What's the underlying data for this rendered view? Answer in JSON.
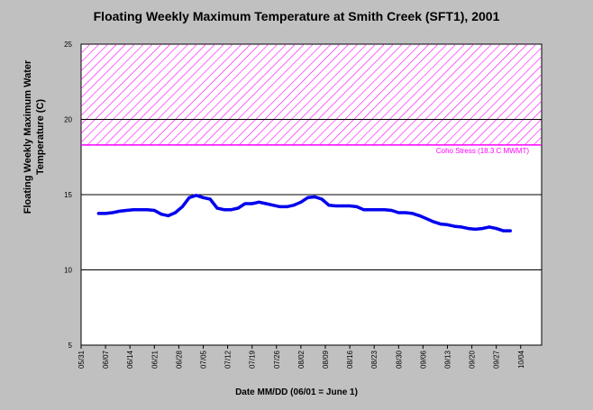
{
  "chart_data": {
    "type": "line",
    "title": "Floating Weekly Maximum Temperature at Smith Creek (SFT1), 2001",
    "ylabel_lines": [
      "Floating Weekly Maximum Water",
      "Temperature (C)"
    ],
    "xlabel": "Date MM/DD (06/01 = June 1)",
    "ylim": [
      5,
      25
    ],
    "yticks": [
      5,
      10,
      15,
      20,
      25
    ],
    "xlim": [
      "05/31",
      "10/10"
    ],
    "xticks": [
      "05/31",
      "06/07",
      "06/14",
      "06/21",
      "06/28",
      "07/05",
      "07/12",
      "07/19",
      "07/26",
      "08/02",
      "08/09",
      "08/16",
      "08/23",
      "08/30",
      "09/06",
      "09/13",
      "09/20",
      "09/27",
      "10/04"
    ],
    "grid": "horizontal",
    "threshold": {
      "label": "Coho Stress (18.3 C MWMT)",
      "value": 18.3,
      "band_top": 25,
      "color": "#ff00ff"
    },
    "series": [
      {
        "color": "#0000ee",
        "x": [
          "06/05",
          "06/07",
          "06/09",
          "06/11",
          "06/13",
          "06/15",
          "06/17",
          "06/19",
          "06/21",
          "06/23",
          "06/25",
          "06/27",
          "06/29",
          "07/01",
          "07/03",
          "07/05",
          "07/07",
          "07/09",
          "07/11",
          "07/13",
          "07/15",
          "07/17",
          "07/19",
          "07/21",
          "07/23",
          "07/25",
          "07/27",
          "07/29",
          "07/31",
          "08/02",
          "08/04",
          "08/06",
          "08/08",
          "08/10",
          "08/12",
          "08/14",
          "08/16",
          "08/18",
          "08/20",
          "08/22",
          "08/24",
          "08/26",
          "08/28",
          "08/30",
          "09/01",
          "09/03",
          "09/05",
          "09/07",
          "09/09",
          "09/11",
          "09/13",
          "09/15",
          "09/17",
          "09/19",
          "09/21",
          "09/23",
          "09/25",
          "09/27",
          "09/29",
          "10/01"
        ],
        "y": [
          13.75,
          13.75,
          13.8,
          13.9,
          13.95,
          14.0,
          14.0,
          14.0,
          13.95,
          13.7,
          13.6,
          13.8,
          14.2,
          14.8,
          14.95,
          14.8,
          14.7,
          14.1,
          14.0,
          14.0,
          14.1,
          14.4,
          14.4,
          14.5,
          14.4,
          14.3,
          14.2,
          14.2,
          14.3,
          14.5,
          14.8,
          14.85,
          14.7,
          14.3,
          14.25,
          14.25,
          14.25,
          14.2,
          14.0,
          14.0,
          14.0,
          14.0,
          13.95,
          13.8,
          13.8,
          13.75,
          13.6,
          13.4,
          13.2,
          13.05,
          13.0,
          12.9,
          12.85,
          12.75,
          12.7,
          12.75,
          12.85,
          12.75,
          12.6,
          12.6
        ]
      }
    ]
  }
}
